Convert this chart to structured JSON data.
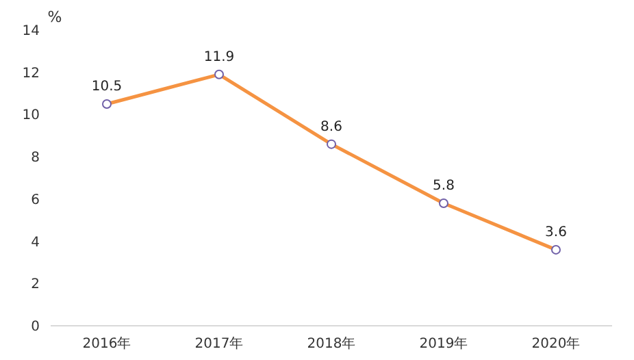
{
  "chart_data": {
    "type": "line",
    "ylabel": "%",
    "categories": [
      "2016年",
      "2017年",
      "2018年",
      "2019年",
      "2020年"
    ],
    "series": [
      {
        "color": "#f59342",
        "values": [
          10.5,
          11.9,
          8.6,
          5.8,
          3.6
        ]
      }
    ],
    "ylim": [
      0,
      14
    ],
    "yticks": [
      0,
      2,
      4,
      6,
      8,
      10,
      12,
      14
    ],
    "marker": "circle",
    "data_labels": true,
    "grid": false
  }
}
